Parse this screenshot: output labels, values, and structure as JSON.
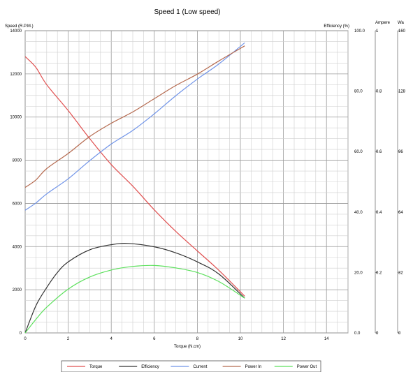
{
  "chart_data": {
    "type": "line",
    "title": "Speed 1 (Low speed)",
    "xlabel": "Torque (N.cm)",
    "xlim": [
      0,
      15
    ],
    "x_ticks": [
      "0",
      "2",
      "4",
      "6",
      "8",
      "10",
      "12",
      "14"
    ],
    "axes": {
      "speed": {
        "label": "Speed  (R.P.M.)",
        "range": [
          0,
          14000
        ],
        "ticks": [
          "0",
          "2000",
          "4000",
          "6000",
          "8000",
          "10000",
          "12000",
          "14000"
        ]
      },
      "efficiency": {
        "label": "Efficiency  (%)",
        "range": [
          0,
          100
        ],
        "ticks": [
          "0.0",
          "20.0",
          "40.0",
          "60.0",
          "80.0",
          "100.0"
        ]
      },
      "ampere": {
        "label": "Ampere",
        "range": [
          0,
          1
        ],
        "ticks": [
          "0",
          "0.2",
          "0.4",
          "0.6",
          "0.8",
          "1"
        ]
      },
      "watt": {
        "label": "Wa",
        "range": [
          0,
          160
        ],
        "ticks": [
          "0",
          "32",
          "64",
          "96",
          "128",
          "160"
        ]
      }
    },
    "series": [
      {
        "name": "Torque",
        "color": "#e05050",
        "axis": "speed",
        "x": [
          0,
          0.5,
          1,
          2,
          3,
          4,
          5,
          6,
          7,
          8,
          9,
          10.2
        ],
        "y": [
          12800,
          12300,
          11500,
          10300,
          9000,
          7800,
          6800,
          5700,
          4700,
          3800,
          2900,
          1700
        ]
      },
      {
        "name": "Efficiency",
        "color": "#333333",
        "axis": "efficiency",
        "x": [
          0,
          0.5,
          1,
          1.5,
          2,
          3,
          4,
          4.8,
          6,
          7,
          8,
          9,
          10.2
        ],
        "y": [
          0,
          9,
          15,
          20,
          23.5,
          27.5,
          29.2,
          29.6,
          28.5,
          26.5,
          23.5,
          19.5,
          11.5
        ]
      },
      {
        "name": "Current",
        "color": "#6f93e8",
        "axis": "ampere",
        "x": [
          0,
          0.5,
          1,
          2,
          3,
          4,
          5,
          6,
          7,
          8,
          9,
          10.2
        ],
        "y": [
          0.406,
          0.43,
          0.46,
          0.51,
          0.57,
          0.625,
          0.67,
          0.725,
          0.785,
          0.84,
          0.89,
          0.96
        ]
      },
      {
        "name": "Power In",
        "color": "#b56a4f",
        "axis": "watt",
        "x": [
          0,
          0.5,
          1,
          2,
          3,
          4,
          5,
          6,
          7,
          8,
          9,
          10.2
        ],
        "y": [
          77,
          81,
          87,
          95,
          104,
          111,
          117,
          124,
          131,
          137,
          144,
          152
        ]
      },
      {
        "name": "Power Out",
        "color": "#5ce05c",
        "axis": "efficiency",
        "x": [
          0,
          0.5,
          1,
          2,
          3,
          4,
          5,
          6,
          7,
          8,
          9,
          10.2
        ],
        "y": [
          0,
          4.5,
          8.5,
          14.5,
          18.5,
          20.8,
          22,
          22.3,
          21.5,
          20,
          17,
          11.5
        ]
      }
    ],
    "grid": true,
    "legend": {
      "position": "bottom"
    }
  }
}
